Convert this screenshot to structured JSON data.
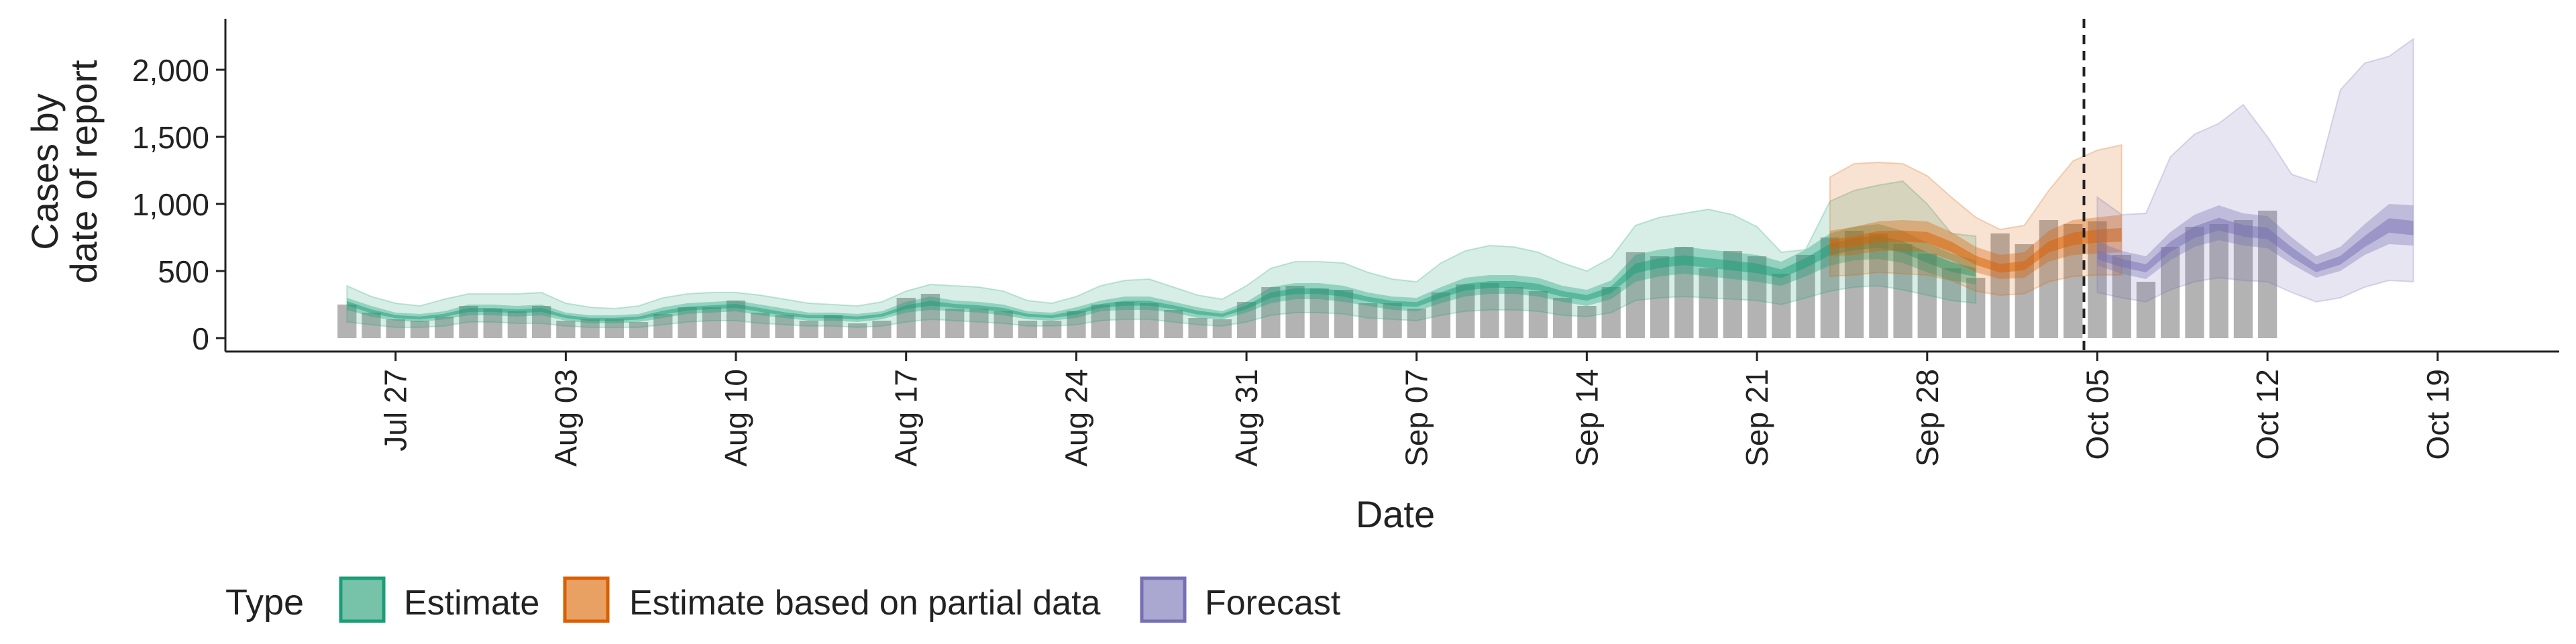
{
  "colors": {
    "estimate": "#1b9e77",
    "partial": "#d95f02",
    "forecast": "#7570b3",
    "bars": "#b3b3b3",
    "axis": "#222222"
  },
  "chart_data": {
    "type": "area",
    "title": "",
    "xlabel": "Date",
    "ylabel_lines": [
      "Cases by",
      "date of report"
    ],
    "ylim": [
      -100,
      2380
    ],
    "yticks": [
      0,
      500,
      1000,
      1500,
      2000
    ],
    "ytick_labels": [
      "0",
      "500",
      "1,000",
      "1,500",
      "2,000"
    ],
    "x_range": [
      "2020-07-20",
      "2020-10-24"
    ],
    "xticks": [
      "2020-07-27",
      "2020-08-03",
      "2020-08-10",
      "2020-08-17",
      "2020-08-24",
      "2020-08-31",
      "2020-09-07",
      "2020-09-14",
      "2020-09-21",
      "2020-09-28",
      "2020-10-05",
      "2020-10-12",
      "2020-10-19"
    ],
    "xtick_labels": [
      "Jul 27",
      "Aug 03",
      "Aug 10",
      "Aug 17",
      "Aug 24",
      "Aug 31",
      "Sep 07",
      "Sep 14",
      "Sep 21",
      "Sep 28",
      "Oct 05",
      "Oct 12",
      "Oct 19"
    ],
    "reference_line_date": "2020-10-04",
    "grid": false,
    "legend": {
      "title": "Type",
      "position": "bottom",
      "entries": [
        "Estimate",
        "Estimate based on partial data",
        "Forecast"
      ]
    },
    "reported_cases": {
      "start": "2020-07-25",
      "values": [
        250,
        190,
        140,
        130,
        160,
        240,
        220,
        200,
        240,
        130,
        140,
        140,
        120,
        180,
        230,
        230,
        280,
        190,
        170,
        130,
        170,
        110,
        130,
        300,
        330,
        220,
        220,
        200,
        130,
        130,
        200,
        250,
        270,
        260,
        210,
        150,
        140,
        270,
        380,
        390,
        370,
        360,
        260,
        260,
        220,
        340,
        400,
        410,
        380,
        350,
        300,
        240,
        380,
        640,
        610,
        680,
        520,
        650,
        610,
        480,
        620,
        750,
        800,
        780,
        700,
        630,
        520,
        450,
        780,
        700,
        880,
        850,
        870,
        620,
        420,
        680,
        830,
        850,
        880,
        950
      ]
    },
    "series": [
      {
        "name": "Estimate",
        "start": "2020-07-25",
        "median": [
          260,
          200,
          160,
          150,
          170,
          210,
          210,
          200,
          210,
          160,
          140,
          140,
          150,
          190,
          220,
          230,
          240,
          210,
          180,
          160,
          160,
          150,
          170,
          230,
          260,
          240,
          230,
          210,
          170,
          160,
          190,
          240,
          260,
          260,
          230,
          190,
          170,
          230,
          320,
          350,
          350,
          330,
          290,
          260,
          250,
          320,
          380,
          400,
          400,
          380,
          330,
          300,
          360,
          520,
          560,
          580,
          560,
          540,
          520,
          480,
          560,
          660,
          700,
          720,
          680,
          600,
          530,
          490
        ],
        "q25": [
          210,
          160,
          130,
          120,
          140,
          170,
          170,
          160,
          170,
          130,
          110,
          110,
          120,
          150,
          180,
          190,
          200,
          170,
          150,
          130,
          130,
          120,
          140,
          190,
          210,
          200,
          190,
          170,
          140,
          130,
          150,
          200,
          210,
          210,
          190,
          150,
          140,
          190,
          260,
          290,
          290,
          270,
          240,
          210,
          200,
          260,
          310,
          330,
          330,
          310,
          270,
          240,
          290,
          420,
          460,
          480,
          460,
          440,
          420,
          390,
          460,
          540,
          580,
          590,
          560,
          490,
          430,
          400
        ],
        "q75": [
          300,
          240,
          190,
          180,
          200,
          250,
          250,
          240,
          250,
          190,
          170,
          170,
          180,
          230,
          260,
          270,
          280,
          250,
          220,
          190,
          190,
          180,
          200,
          270,
          310,
          280,
          270,
          250,
          200,
          190,
          230,
          280,
          310,
          310,
          270,
          230,
          200,
          270,
          380,
          410,
          410,
          390,
          340,
          310,
          300,
          380,
          450,
          470,
          470,
          450,
          390,
          360,
          430,
          620,
          660,
          680,
          660,
          640,
          620,
          570,
          660,
          780,
          830,
          850,
          800,
          710,
          630,
          580
        ],
        "q5": [
          120,
          100,
          80,
          80,
          90,
          120,
          120,
          110,
          110,
          90,
          80,
          80,
          80,
          100,
          120,
          130,
          130,
          110,
          100,
          90,
          90,
          80,
          90,
          120,
          140,
          130,
          120,
          110,
          90,
          90,
          100,
          130,
          140,
          140,
          120,
          100,
          90,
          120,
          170,
          190,
          190,
          180,
          150,
          140,
          130,
          170,
          200,
          210,
          210,
          200,
          170,
          160,
          190,
          280,
          300,
          310,
          300,
          290,
          280,
          250,
          300,
          350,
          380,
          390,
          360,
          320,
          280,
          260
        ],
        "q95": [
          390,
          310,
          260,
          240,
          290,
          330,
          330,
          330,
          340,
          260,
          230,
          220,
          240,
          300,
          330,
          340,
          340,
          320,
          290,
          260,
          250,
          240,
          270,
          350,
          400,
          390,
          380,
          350,
          280,
          260,
          310,
          390,
          430,
          440,
          380,
          320,
          290,
          390,
          520,
          570,
          570,
          560,
          490,
          440,
          420,
          560,
          650,
          690,
          680,
          640,
          560,
          500,
          600,
          840,
          900,
          930,
          960,
          920,
          830,
          640,
          660,
          1020,
          1100,
          1140,
          1170,
          1000,
          780,
          760
        ]
      },
      {
        "name": "Estimate based on partial data",
        "start": "2020-09-24",
        "median": [
          700,
          720,
          760,
          760,
          750,
          680,
          580,
          520,
          540,
          680,
          740,
          760,
          770
        ],
        "q25": [
          610,
          620,
          650,
          650,
          640,
          580,
          490,
          440,
          450,
          570,
          620,
          630,
          640
        ],
        "q75": [
          800,
          830,
          870,
          880,
          870,
          790,
          680,
          620,
          640,
          800,
          880,
          900,
          920
        ],
        "q5": [
          460,
          470,
          490,
          480,
          470,
          430,
          350,
          320,
          330,
          420,
          460,
          470,
          470
        ],
        "q95": [
          1200,
          1300,
          1310,
          1300,
          1210,
          1050,
          900,
          810,
          840,
          1100,
          1320,
          1400,
          1440
        ]
      },
      {
        "name": "Forecast",
        "start": "2020-10-05",
        "median": [
          620,
          560,
          520,
          680,
          790,
          850,
          800,
          780,
          640,
          520,
          580,
          720,
          840,
          820
        ],
        "q25": [
          540,
          480,
          440,
          580,
          680,
          730,
          690,
          670,
          550,
          450,
          500,
          620,
          700,
          690
        ],
        "q75": [
          720,
          650,
          610,
          790,
          920,
          990,
          930,
          910,
          750,
          610,
          680,
          850,
          1000,
          990
        ],
        "q5": [
          340,
          300,
          270,
          360,
          420,
          450,
          430,
          420,
          340,
          270,
          300,
          380,
          430,
          420
        ],
        "q95": [
          1050,
          920,
          930,
          1350,
          1520,
          1600,
          1740,
          1500,
          1220,
          1160,
          1850,
          2050,
          2100,
          2230
        ]
      }
    ]
  }
}
